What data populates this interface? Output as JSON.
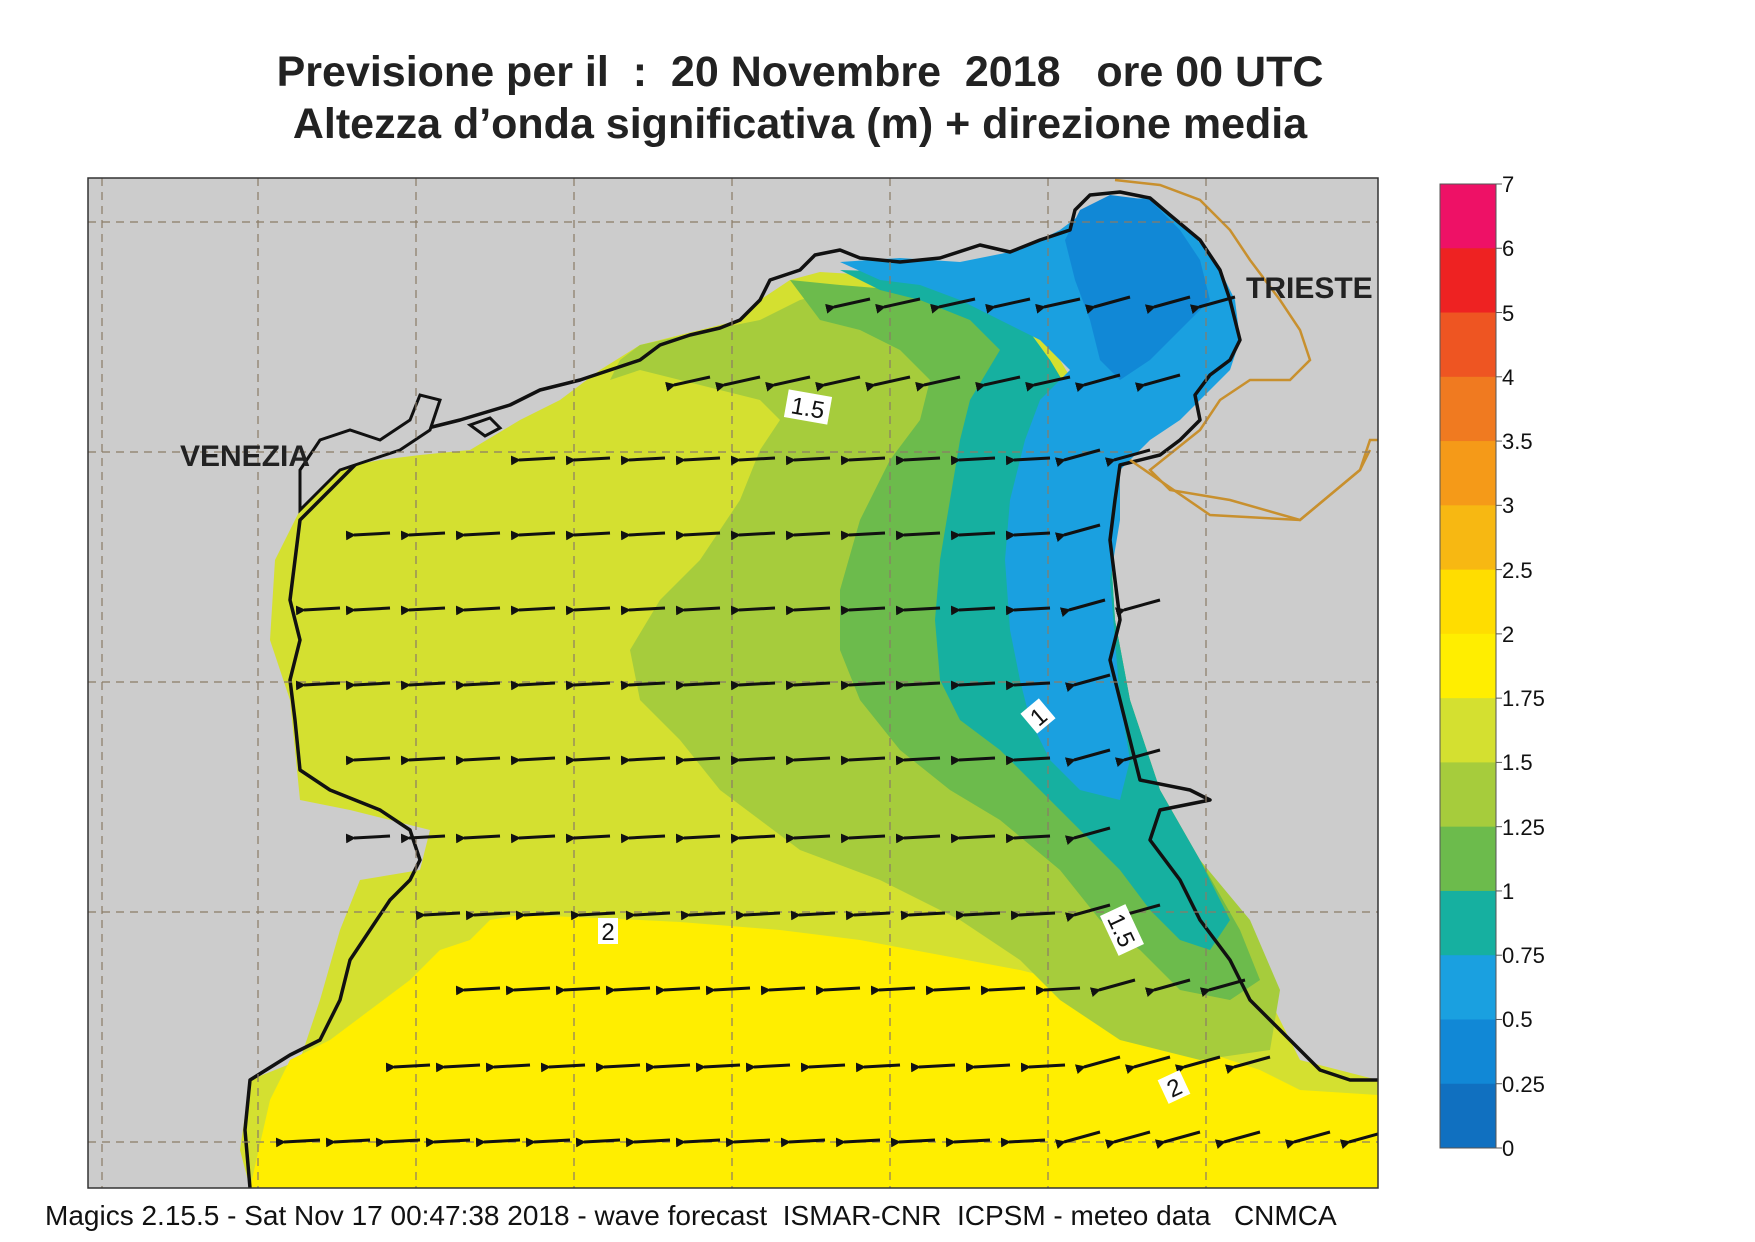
{
  "title": {
    "line1": "Previsione per il  :  20 Novembre  2018   ore 00 UTC",
    "line2": "Altezza d’onda significativa (m) + direzione media"
  },
  "cities": {
    "venezia": "VENEZIA",
    "trieste": "TRIESTE"
  },
  "contour_labels": [
    "1.5",
    "1",
    "1.5",
    "2",
    "2"
  ],
  "colorbar": {
    "labels": [
      "7",
      "6",
      "5",
      "4",
      "3.5",
      "3",
      "2.5",
      "2",
      "1.75",
      "1.5",
      "1.25",
      "1",
      "0.75",
      "0.5",
      "0.25",
      "0"
    ],
    "colors": [
      "#ee1166",
      "#ee2222",
      "#ee5522",
      "#f07a20",
      "#f59a18",
      "#f7b812",
      "#ffdd00",
      "#ffee00",
      "#d4e030",
      "#a6cc3c",
      "#6cbb4c",
      "#16b0a0",
      "#1aa0e0",
      "#1188d6",
      "#1070c0",
      "#0a5cb0"
    ]
  },
  "footer": "Magics 2.15.5 - Sat Nov 17 00:47:38 2018 - wave forecast  ISMAR-CNR  ICPSM - meteo data   CNMCA",
  "colors": {
    "land": "#cccccc",
    "grid": "#8a7b66",
    "coast": "#111111",
    "border": "#c8902e",
    "arrow": "#111111",
    "band_blue": "#1aa0e0",
    "band_teal": "#16b0a0",
    "band_green": "#6cbb4c",
    "band_lightgreen": "#a6cc3c",
    "band_yellowgreen": "#d4e030",
    "band_yellow": "#ffee00"
  }
}
